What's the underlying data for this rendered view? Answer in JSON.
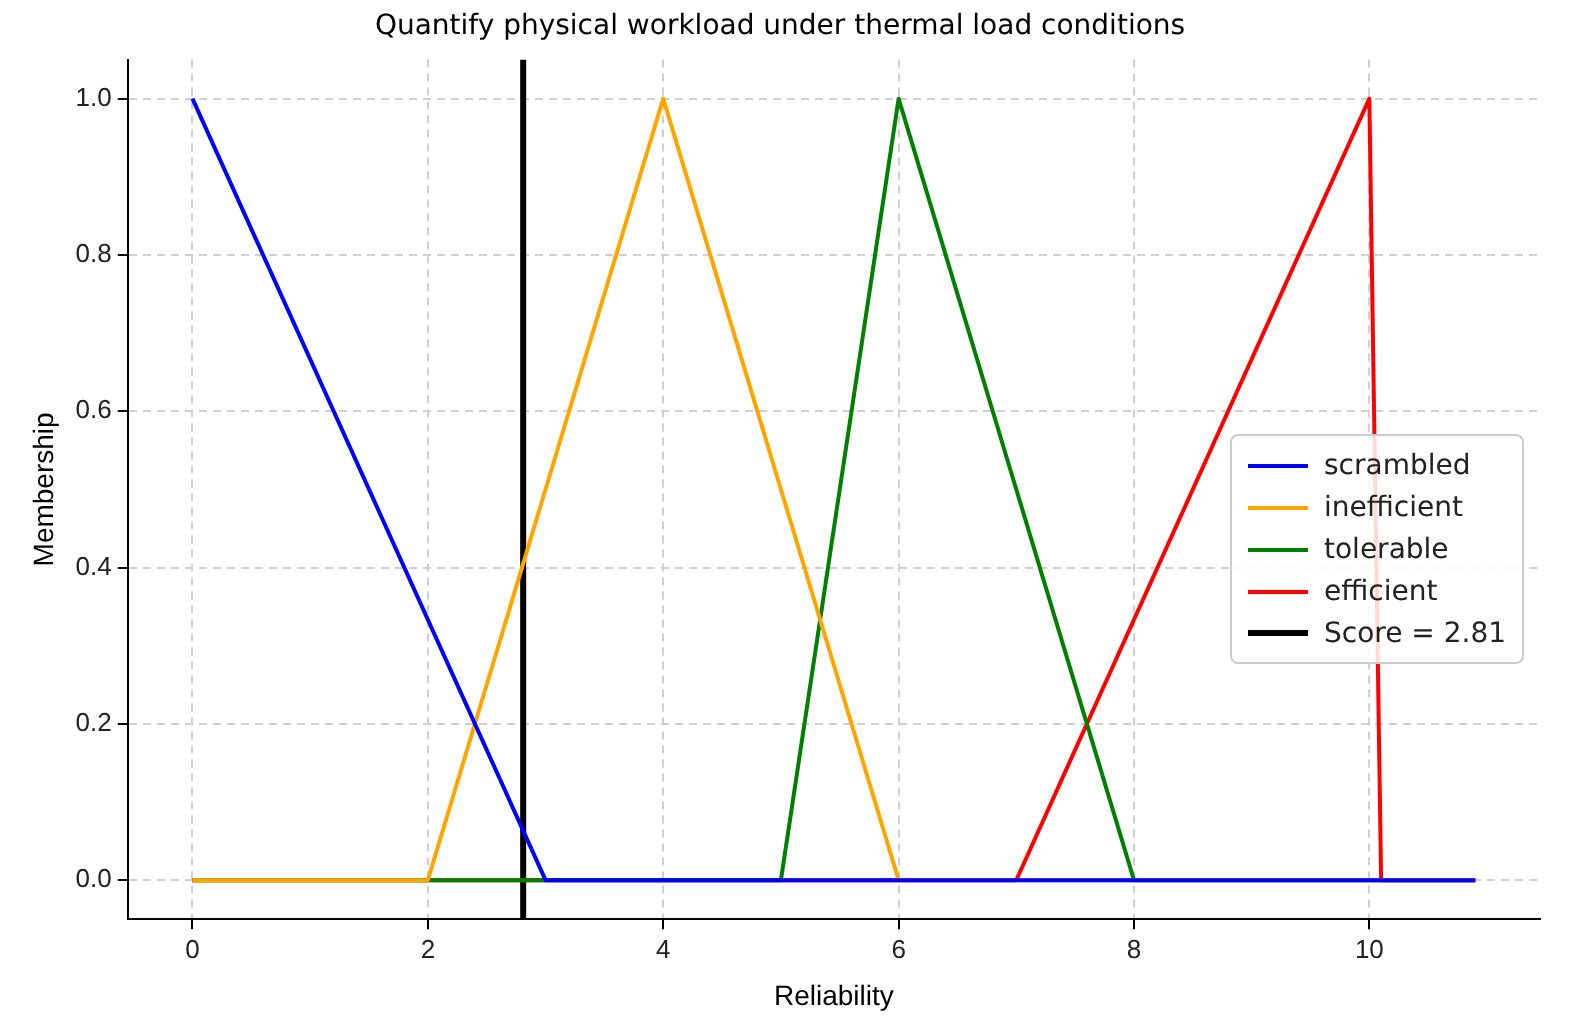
{
  "chart_data": {
    "type": "line",
    "title": "Quantify physical workload under thermal load conditions",
    "xlabel": "Reliability",
    "ylabel": "Membership",
    "series": [
      {
        "name": "scrambled",
        "color": "#0000ff",
        "x": [
          0,
          3,
          10.9
        ],
        "values": [
          1,
          0,
          0
        ]
      },
      {
        "name": "inefficient",
        "color": "#ffa500",
        "x": [
          0,
          2,
          4,
          6,
          10.9
        ],
        "values": [
          0,
          0,
          1,
          0,
          0
        ]
      },
      {
        "name": "tolerable",
        "color": "#008000",
        "x": [
          0,
          5,
          6,
          8,
          10.9
        ],
        "values": [
          0,
          0,
          1,
          0,
          0
        ]
      },
      {
        "name": "efficient",
        "color": "#ff0000",
        "x": [
          0,
          7,
          10,
          10.1,
          10.9
        ],
        "values": [
          0,
          0,
          1,
          0,
          0
        ]
      },
      {
        "name": "Score = 2.81",
        "color": "#000000",
        "x": [
          2.81,
          2.81
        ],
        "values": [
          -0.05,
          1.05
        ]
      }
    ],
    "xlim": [
      -0.55,
      11.45
    ],
    "xticks": [
      0,
      2,
      4,
      6,
      8,
      10
    ],
    "ylim": [
      -0.05,
      1.05
    ],
    "yticks": [
      {
        "value": 0,
        "label": "0.0"
      },
      {
        "value": 0.2,
        "label": "0.2"
      },
      {
        "value": 0.4,
        "label": "0.4"
      },
      {
        "value": 0.6,
        "label": "0.6"
      },
      {
        "value": 0.8,
        "label": "0.8"
      },
      {
        "value": 1,
        "label": "1.0"
      }
    ],
    "grid": true,
    "legend": "center right",
    "marker": "none",
    "line_style": "solid"
  }
}
